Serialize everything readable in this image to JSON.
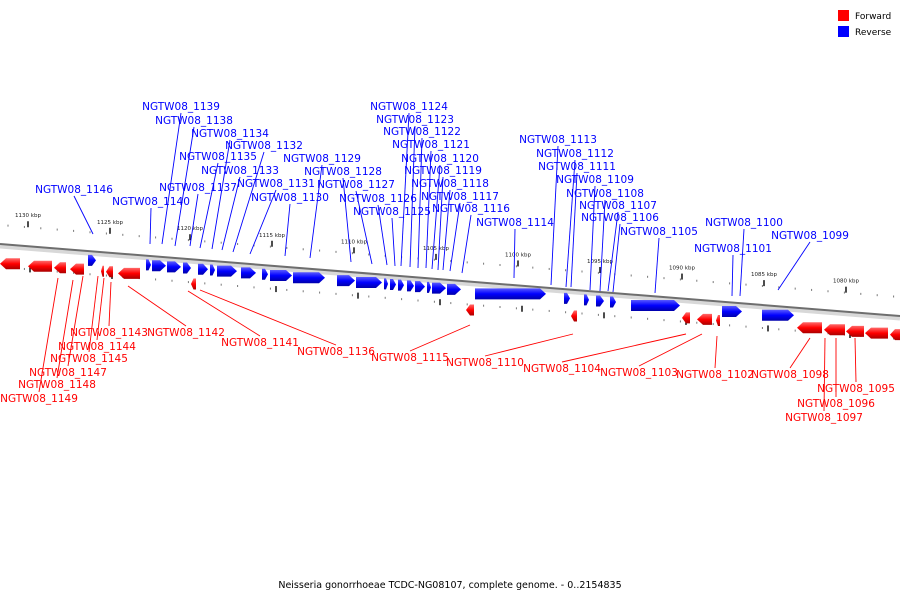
{
  "legend": {
    "forward": {
      "label": "Forward",
      "color": "#ff0000"
    },
    "reverse": {
      "label": "Reverse",
      "color": "#0000ff"
    }
  },
  "caption": "Neisseria gonorrhoeae TCDC-NG08107, complete genome. - 0..2154835",
  "ticks": [
    "1130 kbp",
    "1125 kbp",
    "1120 kbp",
    "1115 kbp",
    "1110 kbp",
    "1105 kbp",
    "1100 kbp",
    "1095 kbp",
    "1090 kbp",
    "1085 kbp",
    "1080 kbp"
  ],
  "reverse_genes": [
    "NGTW08_1146",
    "NGTW08_1140",
    "NGTW08_1139",
    "NGTW08_1138",
    "NGTW08_1137",
    "NGTW08_1135",
    "NGTW08_1134",
    "NGTW08_1133",
    "NGTW08_1132",
    "NGTW08_1131",
    "NGTW08_1130",
    "NGTW08_1129",
    "NGTW08_1128",
    "NGTW08_1127",
    "NGTW08_1126",
    "NGTW08_1125",
    "NGTW08_1124",
    "NGTW08_1123",
    "NGTW08_1122",
    "NGTW08_1121",
    "NGTW08_1120",
    "NGTW08_1119",
    "NGTW08_1118",
    "NGTW08_1117",
    "NGTW08_1116",
    "NGTW08_1114",
    "NGTW08_1113",
    "NGTW08_1112",
    "NGTW08_1111",
    "NGTW08_1109",
    "NGTW08_1108",
    "NGTW08_1107",
    "NGTW08_1106",
    "NGTW08_1105",
    "NGTW08_1101",
    "NGTW08_1100",
    "NGTW08_1099"
  ],
  "forward_genes": [
    "NGTW08_1149",
    "NGTW08_1148",
    "NGTW08_1147",
    "NGTW08_1145",
    "NGTW08_1144",
    "NGTW08_1143",
    "NGTW08_1142",
    "NGTW08_1141",
    "NGTW08_1136",
    "NGTW08_1115",
    "NGTW08_1110",
    "NGTW08_1104",
    "NGTW08_1103",
    "NGTW08_1102",
    "NGTW08_1098",
    "NGTW08_1097",
    "NGTW08_1096",
    "NGTW08_1095"
  ]
}
